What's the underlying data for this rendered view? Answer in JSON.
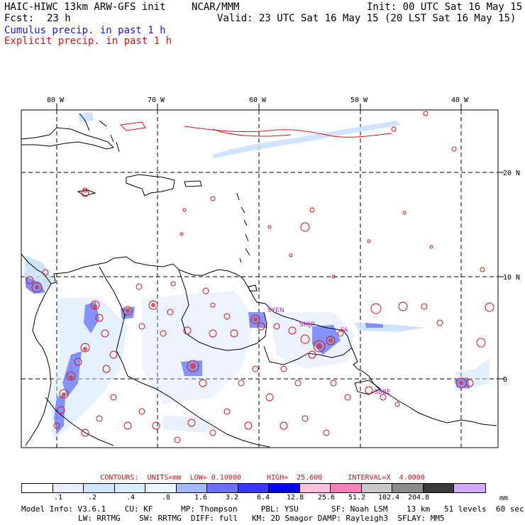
{
  "header": {
    "model": "HAIC-HIWC 13km ARW-GFS init",
    "org": "NCAR/MMM",
    "init": "Init: 00 UTC Sat 16 May 15",
    "fcst_label": "Fcst:",
    "fcst_value": "23 h",
    "valid": "Valid: 23 UTC Sat 16 May 15 (20 LST Sat 16 May 15)",
    "cumulus": "Cumulus precip. in past 1 h",
    "explicit": "Explicit precip. in past 1 h"
  },
  "map": {
    "lon_labels": [
      "80 W",
      "70 W",
      "60 W",
      "50 W",
      "40 W"
    ],
    "lat_labels": [
      "20 N",
      "10 N",
      "0"
    ],
    "stations": [
      "SYEN",
      "SMJP",
      "FA",
      "SBBE"
    ],
    "colors": {
      "coast": "#000000",
      "explicit": "#d41414",
      "cumulus_light": "#c8e0ff",
      "cumulus_mid": "#7090ff",
      "station": "#c020c0"
    }
  },
  "legend": {
    "contours": "CONTOURS:  UNITS=mm  LOW= 0.10000      HIGH=  25.600      INTERVAL=X  4.0000",
    "levels": [
      ".1",
      ".2",
      ".4",
      ".8",
      "1.6",
      "3.2",
      "6.4",
      "12.8",
      "25.6",
      "51.2",
      "102.4",
      "204.8"
    ],
    "units": "mm",
    "colors": [
      "#ffffff",
      "#e6f0ff",
      "#d2e4ff",
      "#d9ecff",
      "#e8f6ff",
      "#a8b8ff",
      "#6f6fff",
      "#3838ff",
      "#0000ee",
      "#ffc0d8",
      "#ff80b8",
      "#c8c8c8",
      "#8c8c8c",
      "#3a3a3a",
      "#d0a8ff"
    ]
  },
  "footer": {
    "line1": "Model Info: V3.6.1    CU: KF      MP: Thompson     PBL: YSU       SF: Noah LSM    13 km   51 levels  60 sec",
    "line2": "LW: RRTMG    SW: RRTMG  DIFF: full   KM: 2D Smagor DAMP: Rayleigh3  SFLAY: MM5"
  }
}
